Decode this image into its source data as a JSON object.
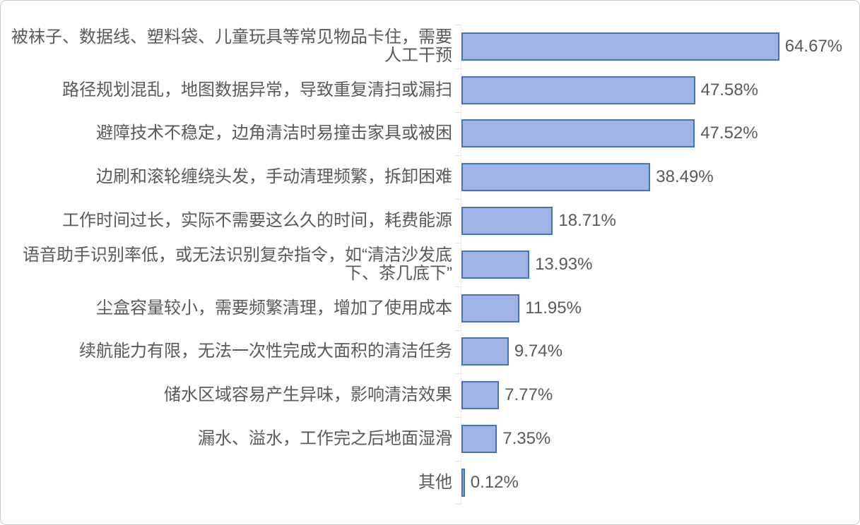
{
  "chart_data": {
    "type": "bar",
    "orientation": "horizontal",
    "title": "",
    "xlabel": "",
    "ylabel": "",
    "axis_range": [
      0,
      70
    ],
    "grid": false,
    "legend": false,
    "value_label_position": "outside-end",
    "categories": [
      "被袜子、数据线、塑料袋、儿童玩具等常见物品卡住，需要人工干预",
      "路径规划混乱，地图数据异常，导致重复清扫或漏扫",
      "避障技术不稳定，边角清洁时易撞击家具或被困",
      "边刷和滚轮缠绕头发，手动清理频繁，拆卸困难",
      "工作时间过长，实际不需要这么久的时间，耗费能源",
      "语音助手识别率低，或无法识别复杂指令，如“清洁沙发底下、茶几底下”",
      "尘盒容量较小，需要频繁清理，增加了使用成本",
      "续航能力有限，无法一次性完成大面积的清洁任务",
      "储水区域容易产生异味，影响清洁效果",
      "漏水、溢水，工作完之后地面湿滑",
      "其他"
    ],
    "values": [
      64.67,
      47.58,
      47.52,
      38.49,
      18.71,
      13.93,
      11.95,
      9.74,
      7.77,
      7.35,
      0.12
    ],
    "value_labels": [
      "64.67%",
      "47.58%",
      "47.52%",
      "38.49%",
      "18.71%",
      "13.93%",
      "11.95%",
      "9.74%",
      "7.77%",
      "7.35%",
      "0.12%"
    ],
    "colors": {
      "bar_fill": "#A0B4E4",
      "bar_border": "#4472C4",
      "text": "#595959",
      "axis_line": "#ECECEC",
      "axis_tick": "#E2E2E2",
      "frame_border": "#C8C8C8",
      "background": "#FFFFFF"
    }
  }
}
